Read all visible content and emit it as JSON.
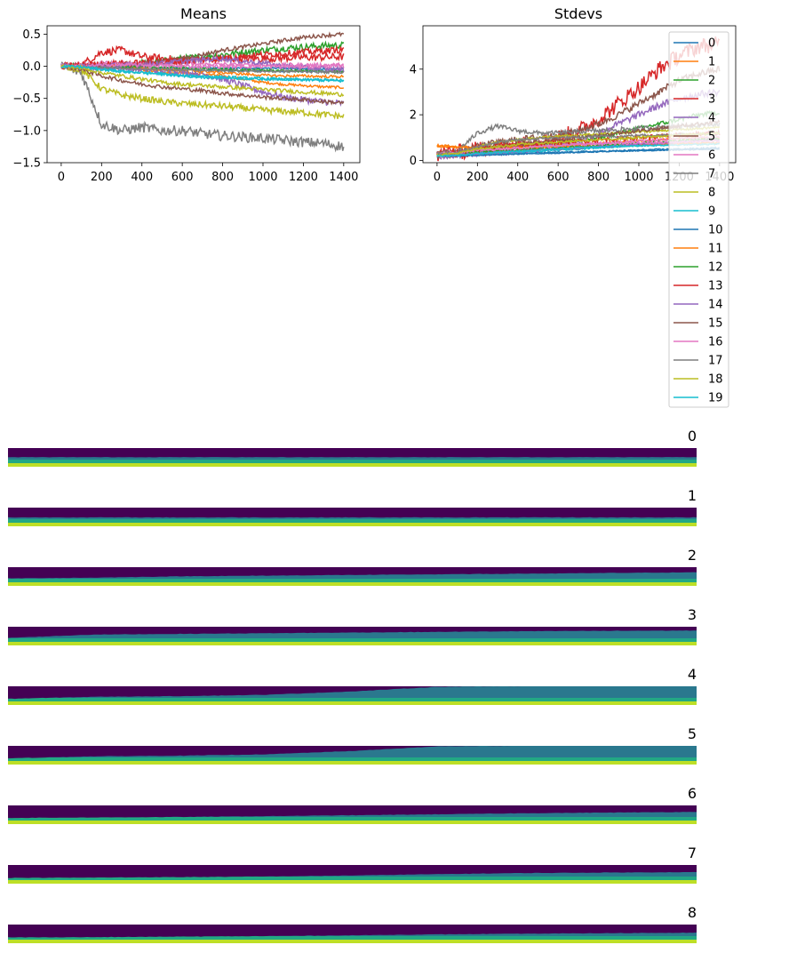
{
  "colors": [
    "#1f77b4",
    "#ff7f0e",
    "#2ca02c",
    "#d62728",
    "#9467bd",
    "#8c564b",
    "#e377c2",
    "#7f7f7f",
    "#bcbd22",
    "#17becf",
    "#1f77b4",
    "#ff7f0e",
    "#2ca02c",
    "#d62728",
    "#9467bd",
    "#8c564b",
    "#e377c2",
    "#7f7f7f",
    "#bcbd22",
    "#17becf"
  ],
  "legend": {
    "placement": "upper right of Stdevs panel, overflowing below",
    "entries": [
      "0",
      "1",
      "2",
      "3",
      "4",
      "5",
      "6",
      "7",
      "8",
      "9",
      "10",
      "11",
      "12",
      "13",
      "14",
      "15",
      "16",
      "17",
      "18",
      "19"
    ]
  },
  "chart_data": [
    {
      "type": "line",
      "title": "Means",
      "xlabel": "",
      "ylabel": "",
      "xlim": [
        -70,
        1480
      ],
      "ylim": [
        -1.5,
        0.63
      ],
      "xticks": [
        0,
        200,
        400,
        600,
        800,
        1000,
        1200,
        1400
      ],
      "yticks": [
        -1.5,
        -1.0,
        -0.5,
        0.0,
        0.5
      ],
      "ytick_labels": [
        "−1.5",
        "−1.0",
        "−0.5",
        "0.0",
        "0.5"
      ],
      "grid": false,
      "x": [
        0,
        100,
        200,
        300,
        400,
        500,
        600,
        700,
        800,
        900,
        1000,
        1100,
        1200,
        1300,
        1400
      ],
      "series": [
        {
          "name": "0",
          "values": [
            0.0,
            -0.01,
            -0.02,
            -0.03,
            -0.04,
            -0.05,
            -0.05,
            -0.06,
            -0.06,
            -0.07,
            -0.07,
            -0.08,
            -0.08,
            -0.08,
            -0.08
          ],
          "noise": 0.01
        },
        {
          "name": "1",
          "values": [
            0.0,
            0.02,
            0.03,
            0.0,
            -0.05,
            -0.1,
            -0.1,
            -0.12,
            -0.15,
            -0.2,
            -0.25,
            -0.28,
            -0.3,
            -0.32,
            -0.33
          ],
          "noise": 0.02
        },
        {
          "name": "2",
          "values": [
            0.0,
            0.0,
            0.0,
            0.02,
            0.05,
            0.08,
            0.12,
            0.15,
            0.18,
            0.22,
            0.25,
            0.28,
            0.3,
            0.32,
            0.33
          ],
          "noise": 0.05
        },
        {
          "name": "3",
          "values": [
            0.0,
            0.02,
            0.22,
            0.25,
            0.15,
            0.12,
            0.1,
            0.1,
            0.12,
            0.12,
            0.12,
            0.13,
            0.14,
            0.14,
            0.15
          ],
          "noise": 0.06
        },
        {
          "name": "4",
          "values": [
            0.0,
            -0.01,
            -0.02,
            -0.03,
            -0.05,
            -0.08,
            -0.1,
            -0.12,
            -0.2,
            -0.3,
            -0.4,
            -0.48,
            -0.52,
            -0.55,
            -0.58
          ],
          "noise": 0.05
        },
        {
          "name": "5",
          "values": [
            0.0,
            0.0,
            0.02,
            0.03,
            0.05,
            0.08,
            0.12,
            0.18,
            0.25,
            0.3,
            0.35,
            0.4,
            0.45,
            0.48,
            0.5
          ],
          "noise": 0.03
        },
        {
          "name": "6",
          "values": [
            0.0,
            0.02,
            0.05,
            0.05,
            0.05,
            0.05,
            0.04,
            0.03,
            0.03,
            0.02,
            0.02,
            0.02,
            0.02,
            0.02,
            0.02
          ],
          "noise": 0.03
        },
        {
          "name": "7",
          "values": [
            0.0,
            -0.1,
            -0.9,
            -1.0,
            -0.95,
            -1.0,
            -1.0,
            -1.05,
            -1.08,
            -1.1,
            -1.12,
            -1.15,
            -1.18,
            -1.2,
            -1.25
          ],
          "noise": 0.08
        },
        {
          "name": "8",
          "values": [
            0.0,
            -0.05,
            -0.35,
            -0.45,
            -0.5,
            -0.55,
            -0.58,
            -0.6,
            -0.62,
            -0.65,
            -0.68,
            -0.7,
            -0.72,
            -0.75,
            -0.78
          ],
          "noise": 0.05
        },
        {
          "name": "9",
          "values": [
            0.0,
            -0.02,
            -0.05,
            -0.08,
            -0.1,
            -0.12,
            -0.15,
            -0.15,
            -0.17,
            -0.18,
            -0.19,
            -0.2,
            -0.21,
            -0.22,
            -0.23
          ],
          "noise": 0.02
        },
        {
          "name": "10",
          "values": [
            0.0,
            0.0,
            0.0,
            0.0,
            -0.01,
            -0.02,
            -0.02,
            -0.02,
            -0.03,
            -0.03,
            -0.03,
            -0.03,
            -0.04,
            -0.04,
            -0.04
          ],
          "noise": 0.01
        },
        {
          "name": "11",
          "values": [
            0.0,
            0.01,
            0.02,
            0.0,
            -0.02,
            -0.05,
            -0.06,
            -0.08,
            -0.1,
            -0.12,
            -0.14,
            -0.15,
            -0.15,
            -0.16,
            -0.16
          ],
          "noise": 0.02
        },
        {
          "name": "12",
          "values": [
            0.0,
            0.0,
            0.0,
            0.0,
            -0.01,
            -0.02,
            -0.03,
            -0.04,
            -0.05,
            -0.06,
            -0.06,
            -0.07,
            -0.07,
            -0.08,
            -0.08
          ],
          "noise": 0.02
        },
        {
          "name": "13",
          "values": [
            0.0,
            0.02,
            0.03,
            0.05,
            0.05,
            0.06,
            0.08,
            0.1,
            0.12,
            0.15,
            0.18,
            0.2,
            0.22,
            0.24,
            0.26
          ],
          "noise": 0.05
        },
        {
          "name": "14",
          "values": [
            0.0,
            0.0,
            0.01,
            0.02,
            0.03,
            0.05,
            0.08,
            0.1,
            0.12,
            0.08,
            0.05,
            0.0,
            -0.02,
            -0.04,
            -0.05
          ],
          "noise": 0.04
        },
        {
          "name": "15",
          "values": [
            0.0,
            -0.05,
            -0.15,
            -0.22,
            -0.28,
            -0.32,
            -0.35,
            -0.38,
            -0.42,
            -0.45,
            -0.48,
            -0.5,
            -0.52,
            -0.55,
            -0.57
          ],
          "noise": 0.03
        },
        {
          "name": "16",
          "values": [
            0.0,
            0.0,
            0.02,
            0.02,
            0.02,
            0.01,
            0.0,
            0.0,
            0.0,
            0.0,
            0.0,
            0.0,
            0.0,
            0.0,
            0.0
          ],
          "noise": 0.03
        },
        {
          "name": "17",
          "values": [
            0.0,
            -0.01,
            -0.02,
            -0.03,
            -0.05,
            -0.05,
            -0.06,
            -0.06,
            -0.07,
            -0.07,
            -0.08,
            -0.08,
            -0.08,
            -0.09,
            -0.09
          ],
          "noise": 0.02
        },
        {
          "name": "18",
          "values": [
            0.0,
            -0.02,
            -0.1,
            -0.15,
            -0.2,
            -0.25,
            -0.28,
            -0.3,
            -0.32,
            -0.34,
            -0.36,
            -0.38,
            -0.4,
            -0.42,
            -0.44
          ],
          "noise": 0.03
        },
        {
          "name": "19",
          "values": [
            0.0,
            -0.01,
            -0.05,
            -0.08,
            -0.1,
            -0.12,
            -0.15,
            -0.17,
            -0.18,
            -0.19,
            -0.2,
            -0.2,
            -0.21,
            -0.21,
            -0.22
          ],
          "noise": 0.02
        }
      ]
    },
    {
      "type": "line",
      "title": "Stdevs",
      "xlabel": "",
      "ylabel": "",
      "xlim": [
        -70,
        1480
      ],
      "ylim": [
        -0.1,
        5.9
      ],
      "xticks": [
        0,
        200,
        400,
        600,
        800,
        1000,
        1200,
        1400
      ],
      "yticks": [
        0,
        2,
        4
      ],
      "ytick_labels": [
        "0",
        "2",
        "4"
      ],
      "grid": false,
      "x": [
        0,
        100,
        200,
        300,
        400,
        500,
        600,
        700,
        800,
        900,
        1000,
        1100,
        1200,
        1300,
        1400
      ],
      "series": [
        {
          "name": "0",
          "values": [
            0.3,
            0.3,
            0.3,
            0.3,
            0.32,
            0.33,
            0.35,
            0.38,
            0.4,
            0.42,
            0.45,
            0.48,
            0.5,
            0.52,
            0.55
          ],
          "noise": 0.03
        },
        {
          "name": "1",
          "values": [
            0.65,
            0.62,
            0.6,
            0.58,
            0.6,
            0.62,
            0.65,
            0.7,
            0.75,
            0.8,
            0.85,
            0.9,
            0.95,
            0.98,
            1.0
          ],
          "noise": 0.05
        },
        {
          "name": "2",
          "values": [
            0.3,
            0.3,
            0.4,
            0.5,
            0.6,
            0.7,
            0.8,
            0.9,
            1.0,
            1.2,
            1.4,
            1.6,
            1.8,
            2.0,
            2.1
          ],
          "noise": 0.1
        },
        {
          "name": "3",
          "values": [
            0.3,
            0.35,
            0.5,
            0.6,
            0.7,
            0.8,
            1.0,
            1.3,
            1.8,
            2.5,
            3.2,
            4.0,
            4.6,
            5.0,
            5.1
          ],
          "noise": 0.35
        },
        {
          "name": "4",
          "values": [
            0.2,
            0.25,
            0.3,
            0.35,
            0.4,
            0.5,
            0.6,
            0.8,
            1.2,
            1.6,
            2.0,
            2.4,
            2.7,
            2.9,
            3.0
          ],
          "noise": 0.15
        },
        {
          "name": "5",
          "values": [
            0.2,
            0.3,
            0.6,
            0.8,
            0.9,
            1.0,
            1.1,
            1.3,
            1.6,
            2.0,
            2.5,
            3.0,
            3.5,
            3.8,
            4.0
          ],
          "noise": 0.15
        },
        {
          "name": "6",
          "values": [
            0.25,
            0.3,
            0.4,
            0.5,
            0.55,
            0.6,
            0.65,
            0.7,
            0.75,
            0.8,
            0.85,
            0.9,
            0.95,
            1.0,
            1.0
          ],
          "noise": 0.05
        },
        {
          "name": "7",
          "values": [
            0.3,
            0.4,
            1.2,
            1.5,
            1.3,
            1.2,
            1.2,
            1.25,
            1.3,
            1.35,
            1.4,
            1.45,
            1.5,
            1.55,
            1.6
          ],
          "noise": 0.1
        },
        {
          "name": "8",
          "values": [
            0.25,
            0.3,
            0.6,
            0.8,
            0.9,
            1.0,
            1.05,
            1.1,
            1.15,
            1.2,
            1.25,
            1.3,
            1.35,
            1.4,
            1.45
          ],
          "noise": 0.05
        },
        {
          "name": "9",
          "values": [
            0.2,
            0.2,
            0.25,
            0.3,
            0.35,
            0.4,
            0.45,
            0.5,
            0.55,
            0.6,
            0.65,
            0.7,
            0.72,
            0.74,
            0.75
          ],
          "noise": 0.03
        },
        {
          "name": "10",
          "values": [
            0.2,
            0.2,
            0.22,
            0.25,
            0.28,
            0.3,
            0.32,
            0.35,
            0.38,
            0.4,
            0.42,
            0.44,
            0.46,
            0.48,
            0.5
          ],
          "noise": 0.02
        },
        {
          "name": "11",
          "values": [
            0.6,
            0.58,
            0.55,
            0.55,
            0.56,
            0.58,
            0.6,
            0.62,
            0.65,
            0.68,
            0.7,
            0.72,
            0.74,
            0.76,
            0.78
          ],
          "noise": 0.04
        },
        {
          "name": "12",
          "values": [
            0.3,
            0.3,
            0.35,
            0.4,
            0.45,
            0.5,
            0.55,
            0.6,
            0.65,
            0.7,
            0.75,
            0.8,
            0.85,
            0.9,
            0.95
          ],
          "noise": 0.05
        },
        {
          "name": "13",
          "values": [
            0.3,
            0.35,
            0.5,
            0.6,
            0.7,
            0.75,
            0.8,
            0.85,
            0.9,
            0.95,
            1.0,
            1.05,
            1.1,
            1.15,
            1.2
          ],
          "noise": 0.1
        },
        {
          "name": "14",
          "values": [
            0.2,
            0.25,
            0.3,
            0.35,
            0.4,
            0.45,
            0.5,
            0.55,
            0.6,
            0.65,
            0.7,
            0.75,
            0.8,
            0.85,
            0.9
          ],
          "noise": 0.05
        },
        {
          "name": "15",
          "values": [
            0.3,
            0.35,
            0.5,
            0.6,
            0.7,
            0.8,
            0.9,
            1.0,
            1.1,
            1.2,
            1.3,
            1.4,
            1.5,
            1.6,
            1.7
          ],
          "noise": 0.08
        },
        {
          "name": "16",
          "values": [
            0.3,
            0.35,
            0.45,
            0.5,
            0.55,
            0.6,
            0.65,
            0.7,
            0.72,
            0.74,
            0.76,
            0.78,
            0.8,
            0.82,
            0.84
          ],
          "noise": 0.05
        },
        {
          "name": "17",
          "values": [
            0.3,
            0.35,
            0.6,
            0.8,
            0.9,
            0.95,
            1.0,
            1.0,
            1.05,
            1.05,
            1.1,
            1.1,
            1.15,
            1.15,
            1.2
          ],
          "noise": 0.05
        },
        {
          "name": "18",
          "values": [
            0.25,
            0.3,
            0.5,
            0.6,
            0.7,
            0.75,
            0.8,
            0.85,
            0.9,
            0.95,
            1.0,
            1.05,
            1.1,
            1.15,
            1.2
          ],
          "noise": 0.05
        },
        {
          "name": "19",
          "values": [
            0.2,
            0.22,
            0.3,
            0.35,
            0.4,
            0.45,
            0.5,
            0.55,
            0.6,
            0.62,
            0.64,
            0.66,
            0.68,
            0.7,
            0.72
          ],
          "noise": 0.03
        }
      ]
    },
    {
      "type": "heatmap",
      "colormap": "viridis",
      "panels": [
        {
          "title": "0",
          "dark_fraction": [
            0.7,
            0.7,
            0.7,
            0.7,
            0.7,
            0.7,
            0.7,
            0.7,
            0.7
          ]
        },
        {
          "title": "1",
          "dark_fraction": [
            0.75,
            0.75,
            0.75,
            0.75,
            0.75,
            0.75,
            0.75,
            0.75,
            0.75
          ]
        },
        {
          "title": "2",
          "dark_fraction": [
            0.85,
            0.8,
            0.7,
            0.65,
            0.6,
            0.55,
            0.5,
            0.45,
            0.4
          ]
        },
        {
          "title": "3",
          "dark_fraction": [
            0.85,
            0.6,
            0.55,
            0.5,
            0.45,
            0.4,
            0.35,
            0.32,
            0.3
          ]
        },
        {
          "title": "4",
          "dark_fraction": [
            0.95,
            0.8,
            0.75,
            0.65,
            0.4,
            0.05,
            0.0,
            0.0,
            0.0
          ]
        },
        {
          "title": "5",
          "dark_fraction": [
            0.95,
            0.8,
            0.75,
            0.65,
            0.4,
            0.05,
            0.0,
            0.0,
            0.0
          ]
        },
        {
          "title": "6",
          "dark_fraction": [
            0.95,
            0.92,
            0.88,
            0.82,
            0.75,
            0.68,
            0.6,
            0.55,
            0.5
          ]
        },
        {
          "title": "7",
          "dark_fraction": [
            0.98,
            0.96,
            0.92,
            0.88,
            0.8,
            0.7,
            0.62,
            0.58,
            0.55
          ]
        },
        {
          "title": "8",
          "dark_fraction": [
            0.98,
            0.96,
            0.92,
            0.88,
            0.82,
            0.75,
            0.7,
            0.66,
            0.62
          ]
        }
      ]
    }
  ]
}
